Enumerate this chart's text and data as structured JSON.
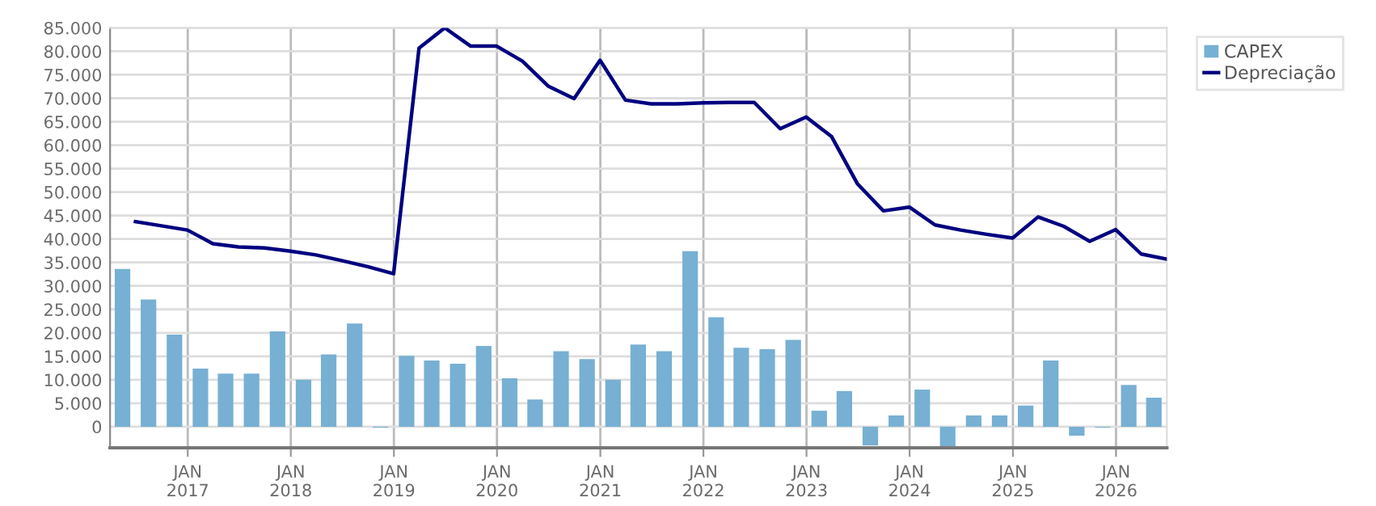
{
  "chart_data": {
    "type": "bar",
    "xlim": [
      "2016-04-01",
      "2026-06-30"
    ],
    "xticks": [
      {
        "value": "2017-01-01",
        "label": "JAN\n2017"
      },
      {
        "value": "2018-01-01",
        "label": "JAN\n2018"
      },
      {
        "value": "2019-01-01",
        "label": "JAN\n2019"
      },
      {
        "value": "2020-01-01",
        "label": "JAN\n2020"
      },
      {
        "value": "2021-01-01",
        "label": "JAN\n2021"
      },
      {
        "value": "2022-01-01",
        "label": "JAN\n2022"
      },
      {
        "value": "2023-01-01",
        "label": "JAN\n2023"
      },
      {
        "value": "2024-01-01",
        "label": "JAN\n2024"
      },
      {
        "value": "2025-01-01",
        "label": "JAN\n2025"
      },
      {
        "value": "2026-01-01",
        "label": "JAN\n2026"
      }
    ],
    "ylim": [
      -4500,
      85000
    ],
    "yticks": [
      {
        "value": 0,
        "label": "0"
      },
      {
        "value": 5000,
        "label": "5.000"
      },
      {
        "value": 10000,
        "label": "10.000"
      },
      {
        "value": 15000,
        "label": "15.000"
      },
      {
        "value": 20000,
        "label": "20.000"
      },
      {
        "value": 25000,
        "label": "25.000"
      },
      {
        "value": 30000,
        "label": "30.000"
      },
      {
        "value": 35000,
        "label": "35.000"
      },
      {
        "value": 40000,
        "label": "40.000"
      },
      {
        "value": 45000,
        "label": "45.000"
      },
      {
        "value": 50000,
        "label": "50.000"
      },
      {
        "value": 55000,
        "label": "55.000"
      },
      {
        "value": 60000,
        "label": "60.000"
      },
      {
        "value": 65000,
        "label": "65.000"
      },
      {
        "value": 70000,
        "label": "70.000"
      },
      {
        "value": 75000,
        "label": "75.000"
      },
      {
        "value": 80000,
        "label": "80.000"
      },
      {
        "value": 85000,
        "label": "85.000"
      }
    ],
    "grid": true,
    "legend": "top right",
    "series": [
      {
        "name": "CAPEX",
        "color": "#77b0d3",
        "x": [
          "2016-05-15",
          "2016-08-15",
          "2016-11-15",
          "2017-02-15",
          "2017-05-15",
          "2017-08-15",
          "2017-11-15",
          "2018-02-15",
          "2018-05-15",
          "2018-08-15",
          "2018-11-15",
          "2019-02-15",
          "2019-05-15",
          "2019-08-15",
          "2019-11-15",
          "2020-02-15",
          "2020-05-15",
          "2020-08-15",
          "2020-11-15",
          "2021-02-15",
          "2021-05-15",
          "2021-08-15",
          "2021-11-15",
          "2022-02-15",
          "2022-05-15",
          "2022-08-15",
          "2022-11-15",
          "2023-02-15",
          "2023-05-15",
          "2023-08-15",
          "2023-11-15",
          "2024-02-15",
          "2024-05-15",
          "2024-08-15",
          "2024-11-15",
          "2025-02-15",
          "2025-05-15",
          "2025-08-15",
          "2025-11-15",
          "2026-02-15",
          "2026-05-15"
        ],
        "values": [
          33600,
          27100,
          19600,
          12400,
          11300,
          11300,
          20300,
          10000,
          15400,
          22000,
          -200,
          15100,
          14100,
          13400,
          17200,
          10300,
          5800,
          16100,
          14400,
          10000,
          17500,
          16100,
          37400,
          23300,
          16800,
          16500,
          18500,
          3400,
          7600,
          -4000,
          2400,
          7900,
          -4400,
          2400,
          2400,
          4500,
          14100,
          -1900,
          -200,
          8900,
          6200
        ]
      },
      {
        "name": "Depreciação",
        "type": "line",
        "color": "#000080",
        "x": [
          "2016-06-30",
          "2016-09-30",
          "2016-12-31",
          "2017-03-31",
          "2017-06-30",
          "2017-09-30",
          "2017-12-31",
          "2018-03-31",
          "2018-06-30",
          "2018-09-30",
          "2018-12-31",
          "2019-03-31",
          "2019-06-30",
          "2019-09-30",
          "2019-12-31",
          "2020-03-31",
          "2020-06-30",
          "2020-09-30",
          "2020-12-31",
          "2021-03-31",
          "2021-06-30",
          "2021-09-30",
          "2021-12-31",
          "2022-03-31",
          "2022-06-30",
          "2022-09-30",
          "2022-12-31",
          "2023-03-31",
          "2023-06-30",
          "2023-09-30",
          "2023-12-31",
          "2024-03-31",
          "2024-06-30",
          "2024-09-30",
          "2024-12-31",
          "2025-03-31",
          "2025-06-30",
          "2025-09-30",
          "2025-12-31",
          "2026-03-31",
          "2026-06-30"
        ],
        "values": [
          43700,
          42800,
          41900,
          39000,
          38300,
          38100,
          37400,
          36600,
          35400,
          34100,
          32600,
          80700,
          85000,
          81100,
          81100,
          77900,
          72600,
          69900,
          78100,
          69600,
          68800,
          68800,
          69000,
          69100,
          69100,
          63500,
          66000,
          61800,
          51800,
          46000,
          46800,
          43000,
          41900,
          41000,
          40200,
          44700,
          42700,
          39500,
          42000,
          36800,
          35700
        ]
      }
    ]
  }
}
